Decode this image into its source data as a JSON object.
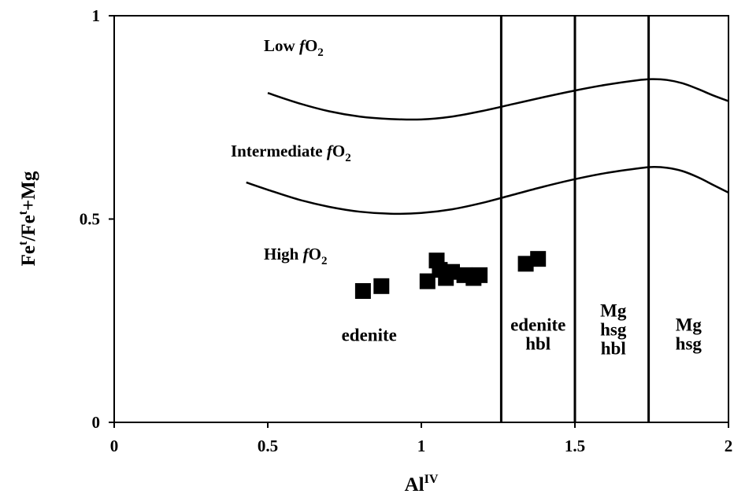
{
  "chart_data": {
    "type": "scatter",
    "title": "",
    "xlabel_main": "Al",
    "xlabel_sup": "IV",
    "ylabel_parts": {
      "a": "Fe",
      "sup1": "t",
      "b": "/Fe",
      "sup2": "t",
      "c": "+Mg"
    },
    "xlim": [
      0,
      2
    ],
    "ylim": [
      0,
      1
    ],
    "x_ticks": [
      {
        "value": 0,
        "label": "0"
      },
      {
        "value": 0.5,
        "label": "0.5"
      },
      {
        "value": 1,
        "label": "1"
      },
      {
        "value": 1.5,
        "label": "1.5"
      },
      {
        "value": 2,
        "label": "2"
      }
    ],
    "y_ticks": [
      {
        "value": 0,
        "label": "0"
      },
      {
        "value": 0.5,
        "label": "0.5"
      },
      {
        "value": 1,
        "label": "1"
      }
    ],
    "grid": false,
    "legend": "none",
    "marker_color": "#000000",
    "points": [
      {
        "x": 0.81,
        "y": 0.323
      },
      {
        "x": 0.87,
        "y": 0.335
      },
      {
        "x": 1.02,
        "y": 0.347
      },
      {
        "x": 1.05,
        "y": 0.398
      },
      {
        "x": 1.06,
        "y": 0.375
      },
      {
        "x": 1.08,
        "y": 0.355
      },
      {
        "x": 1.1,
        "y": 0.37
      },
      {
        "x": 1.14,
        "y": 0.362
      },
      {
        "x": 1.17,
        "y": 0.355
      },
      {
        "x": 1.19,
        "y": 0.362
      },
      {
        "x": 1.34,
        "y": 0.39
      },
      {
        "x": 1.38,
        "y": 0.402
      }
    ],
    "boundary_curves": [
      {
        "label": "upper",
        "points": [
          [
            0.5,
            0.81
          ],
          [
            0.6,
            0.785
          ],
          [
            0.7,
            0.765
          ],
          [
            0.8,
            0.752
          ],
          [
            0.9,
            0.746
          ],
          [
            1.0,
            0.745
          ],
          [
            1.1,
            0.752
          ],
          [
            1.2,
            0.766
          ],
          [
            1.3,
            0.783
          ],
          [
            1.4,
            0.8
          ],
          [
            1.5,
            0.816
          ],
          [
            1.6,
            0.83
          ],
          [
            1.7,
            0.841
          ],
          [
            1.75,
            0.844
          ],
          [
            1.8,
            0.842
          ],
          [
            1.85,
            0.834
          ],
          [
            1.9,
            0.82
          ],
          [
            1.95,
            0.804
          ],
          [
            2.0,
            0.79
          ]
        ]
      },
      {
        "label": "lower",
        "points": [
          [
            0.43,
            0.59
          ],
          [
            0.5,
            0.572
          ],
          [
            0.6,
            0.548
          ],
          [
            0.7,
            0.53
          ],
          [
            0.8,
            0.518
          ],
          [
            0.9,
            0.513
          ],
          [
            1.0,
            0.515
          ],
          [
            1.1,
            0.524
          ],
          [
            1.2,
            0.54
          ],
          [
            1.3,
            0.56
          ],
          [
            1.4,
            0.58
          ],
          [
            1.5,
            0.598
          ],
          [
            1.6,
            0.613
          ],
          [
            1.7,
            0.624
          ],
          [
            1.75,
            0.628
          ],
          [
            1.8,
            0.626
          ],
          [
            1.85,
            0.618
          ],
          [
            1.9,
            0.603
          ],
          [
            1.95,
            0.584
          ],
          [
            2.0,
            0.565
          ]
        ]
      }
    ],
    "vertical_lines": [
      1.26,
      1.5,
      1.74
    ],
    "region_labels": [
      {
        "lines": [
          "Low ",
          "fO",
          "2"
        ],
        "x": 0.98,
        "y": 0.925,
        "anchor": "end"
      },
      {
        "lines": [
          "Intermediate ",
          "fO",
          "2"
        ],
        "x": 1.02,
        "y": 0.665,
        "anchor": "end"
      },
      {
        "lines": [
          "High ",
          "fO",
          "2"
        ],
        "x": 0.82,
        "y": 0.415,
        "anchor": "end"
      }
    ],
    "field_labels": [
      {
        "lines": [
          "edenite"
        ],
        "x": 0.83,
        "y": 0.2
      },
      {
        "lines": [
          "edenite",
          "hbl"
        ],
        "x": 1.38,
        "y": 0.225
      },
      {
        "lines": [
          "Mg",
          "hsg",
          "hbl"
        ],
        "x": 1.625,
        "y": 0.26
      },
      {
        "lines": [
          "Mg",
          "hsg"
        ],
        "x": 1.87,
        "y": 0.225
      }
    ]
  }
}
